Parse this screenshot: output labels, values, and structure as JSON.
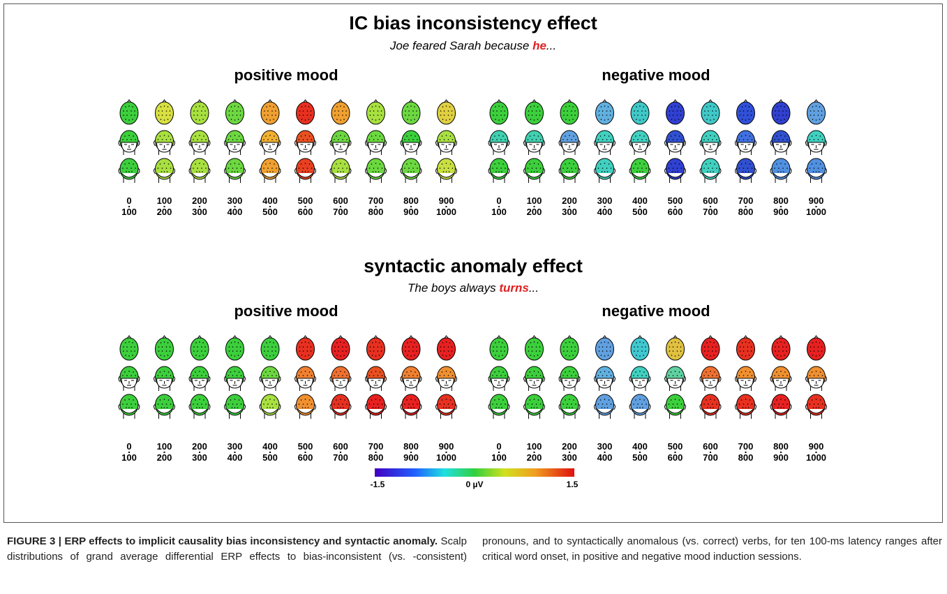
{
  "figure": {
    "panels": [
      {
        "title": "IC bias inconsistency effect",
        "sentence": {
          "before": "Joe feared Sarah because ",
          "highlight": "he",
          "after": "..."
        },
        "moods": [
          {
            "label": "positive mood",
            "ranges": [
              {
                "from": 0,
                "to": 100
              },
              {
                "from": 100,
                "to": 200
              },
              {
                "from": 200,
                "to": 300
              },
              {
                "from": 300,
                "to": 400
              },
              {
                "from": 400,
                "to": 500
              },
              {
                "from": 500,
                "to": 600
              },
              {
                "from": 600,
                "to": 700
              },
              {
                "from": 700,
                "to": 800
              },
              {
                "from": 800,
                "to": 900
              },
              {
                "from": 900,
                "to": 1000
              }
            ],
            "top": [
              "#3ccf3c",
              "#d8e040",
              "#a8e040",
              "#6cd840",
              "#f0a030",
              "#e83020",
              "#f0a030",
              "#a8e040",
              "#6cd840",
              "#e0d040"
            ],
            "front": [
              "#3ccf3c",
              "#a8e040",
              "#a8e040",
              "#6cd840",
              "#f0b030",
              "#e85020",
              "#6cd840",
              "#6cd840",
              "#3ccf3c",
              "#a8e040"
            ],
            "back": [
              "#3ccf3c",
              "#a8e040",
              "#a8e040",
              "#6cd840",
              "#f0a030",
              "#e84020",
              "#a8e040",
              "#6cd840",
              "#6cd840",
              "#c8e040"
            ]
          },
          {
            "label": "negative mood",
            "ranges": [
              {
                "from": 0,
                "to": 100
              },
              {
                "from": 100,
                "to": 200
              },
              {
                "from": 200,
                "to": 300
              },
              {
                "from": 300,
                "to": 400
              },
              {
                "from": 400,
                "to": 500
              },
              {
                "from": 500,
                "to": 600
              },
              {
                "from": 600,
                "to": 700
              },
              {
                "from": 700,
                "to": 800
              },
              {
                "from": 800,
                "to": 900
              },
              {
                "from": 900,
                "to": 1000
              }
            ],
            "top": [
              "#3ccf3c",
              "#3ccf3c",
              "#3ccf3c",
              "#60b0e0",
              "#40c8c8",
              "#3040d0",
              "#40c8c8",
              "#3050d8",
              "#3040d0",
              "#60a0e0"
            ],
            "front": [
              "#40d0b0",
              "#40d0b0",
              "#60a0e0",
              "#40d0c0",
              "#40d0c0",
              "#3050d0",
              "#40d0c0",
              "#4070e0",
              "#3050d0",
              "#40d0c0"
            ],
            "back": [
              "#3ccf3c",
              "#3ccf3c",
              "#3ccf3c",
              "#40d0c0",
              "#3ccf3c",
              "#3040d0",
              "#40d0c0",
              "#3050d0",
              "#5090e0",
              "#5090e0"
            ]
          }
        ]
      },
      {
        "title": "syntactic anomaly effect",
        "sentence": {
          "before": "The boys always ",
          "highlight": "turns",
          "after": "..."
        },
        "moods": [
          {
            "label": "positive mood",
            "ranges": [
              {
                "from": 0,
                "to": 100
              },
              {
                "from": 100,
                "to": 200
              },
              {
                "from": 200,
                "to": 300
              },
              {
                "from": 300,
                "to": 400
              },
              {
                "from": 400,
                "to": 500
              },
              {
                "from": 500,
                "to": 600
              },
              {
                "from": 600,
                "to": 700
              },
              {
                "from": 700,
                "to": 800
              },
              {
                "from": 800,
                "to": 900
              },
              {
                "from": 900,
                "to": 1000
              }
            ],
            "top": [
              "#3ccf3c",
              "#3ccf3c",
              "#3ccf3c",
              "#3ccf3c",
              "#3ccf3c",
              "#e83020",
              "#e82020",
              "#e83020",
              "#e82020",
              "#e82020"
            ],
            "front": [
              "#3ccf3c",
              "#3ccf3c",
              "#3ccf3c",
              "#3ccf3c",
              "#6cd840",
              "#f08030",
              "#f07030",
              "#e85020",
              "#f08030",
              "#f09030"
            ],
            "back": [
              "#3ccf3c",
              "#3ccf3c",
              "#3ccf3c",
              "#3ccf3c",
              "#a8e040",
              "#f09030",
              "#e83020",
              "#e82020",
              "#e82020",
              "#e83020"
            ]
          },
          {
            "label": "negative mood",
            "ranges": [
              {
                "from": 0,
                "to": 100
              },
              {
                "from": 100,
                "to": 200
              },
              {
                "from": 200,
                "to": 300
              },
              {
                "from": 300,
                "to": 400
              },
              {
                "from": 400,
                "to": 500
              },
              {
                "from": 500,
                "to": 600
              },
              {
                "from": 600,
                "to": 700
              },
              {
                "from": 700,
                "to": 800
              },
              {
                "from": 800,
                "to": 900
              },
              {
                "from": 900,
                "to": 1000
              }
            ],
            "top": [
              "#3ccf3c",
              "#3ccf3c",
              "#3ccf3c",
              "#60a0e0",
              "#40c8d0",
              "#e0c040",
              "#e82020",
              "#e83020",
              "#e82020",
              "#e82020"
            ],
            "front": [
              "#3ccf3c",
              "#3ccf3c",
              "#3ccf3c",
              "#60b0e0",
              "#40d0c0",
              "#60d0a0",
              "#f07030",
              "#f09030",
              "#f09030",
              "#f09030"
            ],
            "back": [
              "#3ccf3c",
              "#3ccf3c",
              "#3ccf3c",
              "#60a0e0",
              "#60a0e0",
              "#3ccf3c",
              "#e83020",
              "#e83020",
              "#e82020",
              "#e83020"
            ]
          }
        ]
      }
    ],
    "colorbar": {
      "min": "-1.5",
      "mid": "0 µV",
      "max": "1.5"
    },
    "caption": {
      "label": "FIGURE 3 | ERP effects to implicit causality bias inconsistency and syntactic anomaly.",
      "text": " Scalp distributions of grand average differential ERP effects to bias-inconsistent (vs. -consistent) pronouns, and to syntactically anomalous (vs. correct) verbs, for ten 100-ms latency ranges after critical word onset, in positive and negative mood induction sessions."
    }
  }
}
